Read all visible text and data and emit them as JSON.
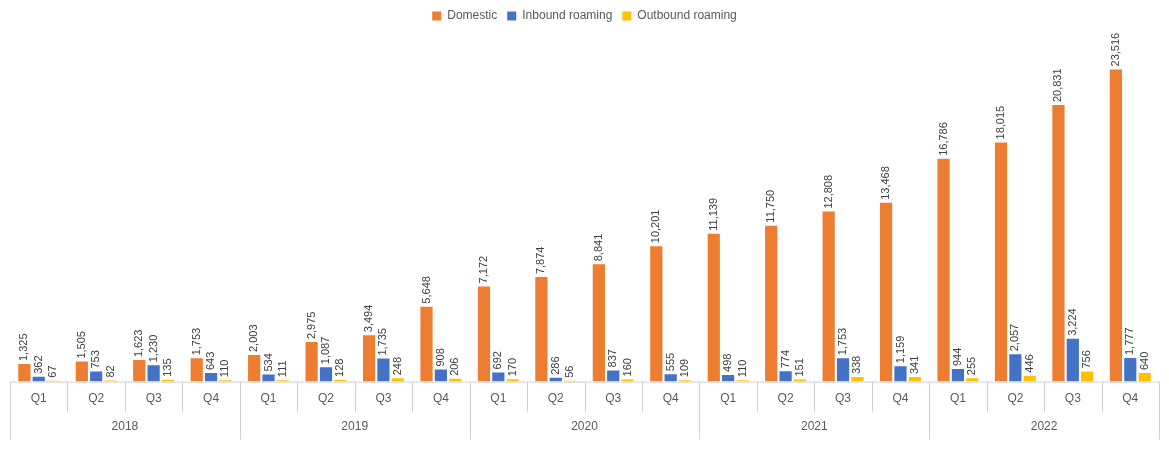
{
  "chart_data": {
    "type": "bar",
    "categories": [
      "Q1",
      "Q2",
      "Q3",
      "Q4",
      "Q1",
      "Q2",
      "Q3",
      "Q4",
      "Q1",
      "Q2",
      "Q3",
      "Q4",
      "Q1",
      "Q2",
      "Q3",
      "Q4",
      "Q1",
      "Q2",
      "Q3",
      "Q4"
    ],
    "series": [
      {
        "name": "Domestic",
        "color": "#ed7d31",
        "values": [
          1325,
          1505,
          1623,
          1753,
          2003,
          2975,
          3494,
          5648,
          7172,
          7874,
          8841,
          10201,
          11139,
          11750,
          12808,
          13468,
          16786,
          18015,
          20831,
          23516
        ],
        "value_labels": [
          "1,325",
          "1,505",
          "1,623",
          "1,753",
          "2,003",
          "2,975",
          "3,494",
          "5,648",
          "7,172",
          "7,874",
          "8,841",
          "10,201",
          "11,139",
          "11,750",
          "12,808",
          "13,468",
          "16,786",
          "18,015",
          "20,831",
          "23,516"
        ]
      },
      {
        "name": "Inbound roaming",
        "color": "#4472c4",
        "values": [
          362,
          753,
          1230,
          643,
          534,
          1087,
          1735,
          908,
          692,
          286,
          837,
          555,
          498,
          774,
          1753,
          1159,
          944,
          2057,
          3224,
          1777
        ],
        "value_labels": [
          "362",
          "753",
          "1,230",
          "643",
          "534",
          "1,087",
          "1,735",
          "908",
          "692",
          "286",
          "837",
          "555",
          "498",
          "774",
          "1,753",
          "1,159",
          "944",
          "2,057",
          "3,224",
          "1,777"
        ]
      },
      {
        "name": "Outbound roaming",
        "color": "#ffc000",
        "values": [
          67,
          82,
          135,
          110,
          111,
          128,
          248,
          206,
          170,
          56,
          160,
          109,
          110,
          151,
          338,
          341,
          255,
          446,
          756,
          640
        ],
        "value_labels": [
          "67",
          "82",
          "135",
          "110",
          "111",
          "128",
          "248",
          "206",
          "170",
          "56",
          "160",
          "109",
          "110",
          "151",
          "338",
          "341",
          "255",
          "446",
          "756",
          "640"
        ]
      }
    ],
    "annotations": [
      "2018",
      "2019",
      "2020",
      "2021",
      "2022"
    ],
    "legend": "top"
  }
}
